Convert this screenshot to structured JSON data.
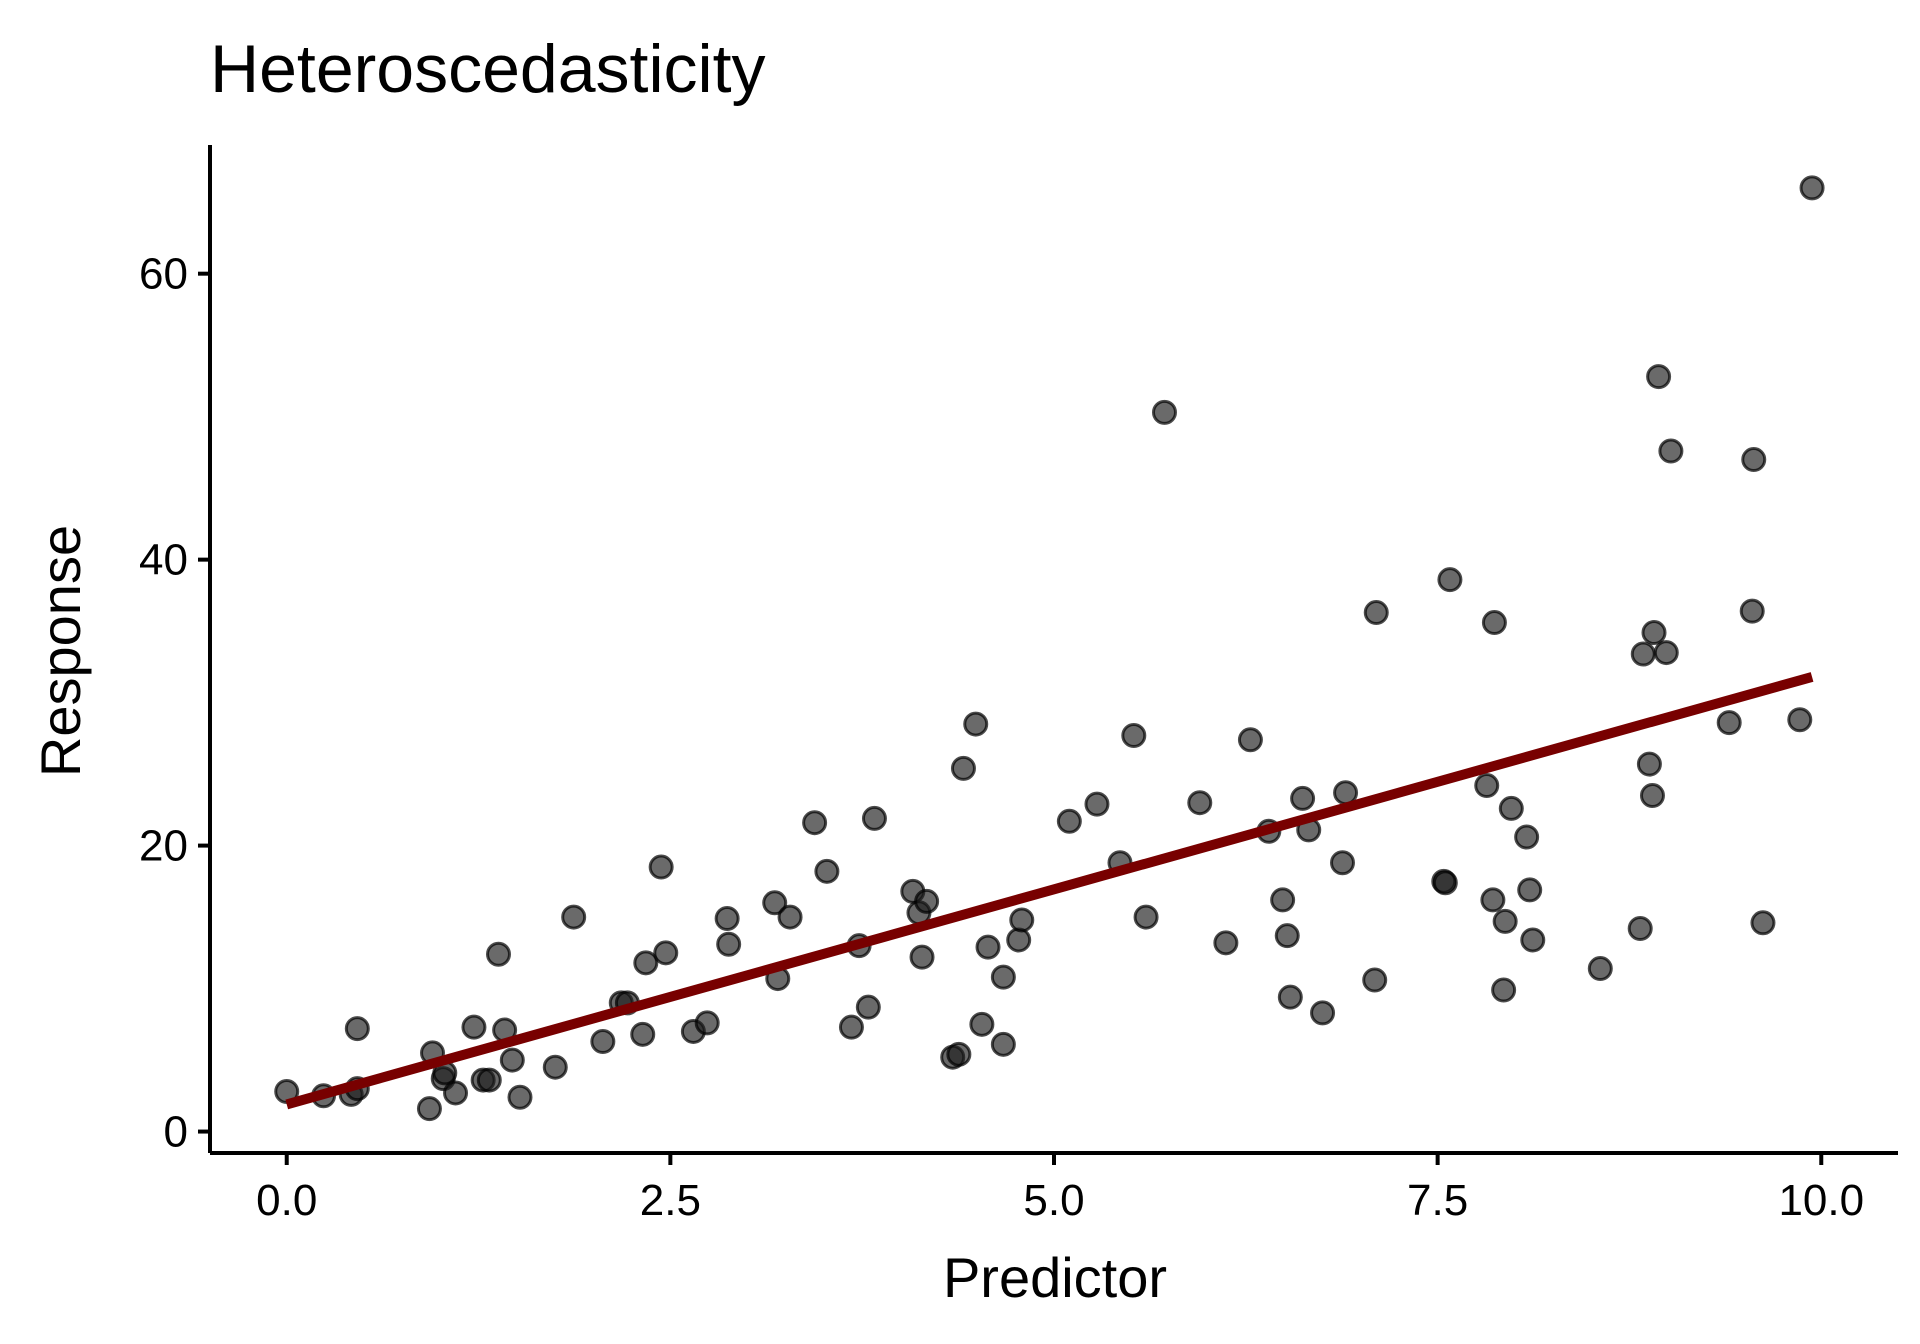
{
  "chart_data": {
    "type": "scatter",
    "title": "Heteroscedasticity",
    "xlabel": "Predictor",
    "ylabel": "Response",
    "xlim": [
      -0.5,
      10.5
    ],
    "ylim": [
      -1.5,
      69
    ],
    "x_ticks": [
      {
        "value": 0,
        "label": "0.0"
      },
      {
        "value": 2.5,
        "label": "2.5"
      },
      {
        "value": 5,
        "label": "5.0"
      },
      {
        "value": 7.5,
        "label": "7.5"
      },
      {
        "value": 10,
        "label": "10.0"
      }
    ],
    "y_ticks": [
      {
        "value": 0,
        "label": "0"
      },
      {
        "value": 20,
        "label": "20"
      },
      {
        "value": 40,
        "label": "40"
      },
      {
        "value": 60,
        "label": "60"
      }
    ],
    "grid": false,
    "series": [
      {
        "name": "observations",
        "type": "scatter",
        "points": [
          [
            0.0,
            2.8
          ],
          [
            0.24,
            2.5
          ],
          [
            0.42,
            2.6
          ],
          [
            0.46,
            3.0
          ],
          [
            0.46,
            7.2
          ],
          [
            0.93,
            1.6
          ],
          [
            0.95,
            5.5
          ],
          [
            1.02,
            3.7
          ],
          [
            1.03,
            4.1
          ],
          [
            1.1,
            2.7
          ],
          [
            1.22,
            7.3
          ],
          [
            1.28,
            3.6
          ],
          [
            1.32,
            3.6
          ],
          [
            1.38,
            12.4
          ],
          [
            1.42,
            7.1
          ],
          [
            1.47,
            5.0
          ],
          [
            1.52,
            2.4
          ],
          [
            1.75,
            4.5
          ],
          [
            1.87,
            15.0
          ],
          [
            2.06,
            6.3
          ],
          [
            2.18,
            9.0
          ],
          [
            2.22,
            9.0
          ],
          [
            2.32,
            6.8
          ],
          [
            2.34,
            11.8
          ],
          [
            2.44,
            18.5
          ],
          [
            2.47,
            12.5
          ],
          [
            2.65,
            7.0
          ],
          [
            2.74,
            7.6
          ],
          [
            2.87,
            14.9
          ],
          [
            2.88,
            13.1
          ],
          [
            3.18,
            16.0
          ],
          [
            3.2,
            10.7
          ],
          [
            3.28,
            15.0
          ],
          [
            3.44,
            21.6
          ],
          [
            3.52,
            18.2
          ],
          [
            3.68,
            7.3
          ],
          [
            3.73,
            13.0
          ],
          [
            3.79,
            8.7
          ],
          [
            3.83,
            21.9
          ],
          [
            4.08,
            16.8
          ],
          [
            4.12,
            15.3
          ],
          [
            4.14,
            12.2
          ],
          [
            4.17,
            16.1
          ],
          [
            4.34,
            5.2
          ],
          [
            4.38,
            5.4
          ],
          [
            4.41,
            25.4
          ],
          [
            4.49,
            28.5
          ],
          [
            4.53,
            7.5
          ],
          [
            4.57,
            12.9
          ],
          [
            4.67,
            10.8
          ],
          [
            4.67,
            6.1
          ],
          [
            4.77,
            13.4
          ],
          [
            4.79,
            14.8
          ],
          [
            5.1,
            21.7
          ],
          [
            5.28,
            22.9
          ],
          [
            5.43,
            18.8
          ],
          [
            5.52,
            27.7
          ],
          [
            5.6,
            15.0
          ],
          [
            5.72,
            50.3
          ],
          [
            5.95,
            23.0
          ],
          [
            6.12,
            13.2
          ],
          [
            6.28,
            27.4
          ],
          [
            6.4,
            21.0
          ],
          [
            6.49,
            16.2
          ],
          [
            6.52,
            13.7
          ],
          [
            6.54,
            9.4
          ],
          [
            6.62,
            23.3
          ],
          [
            6.66,
            21.1
          ],
          [
            6.75,
            8.3
          ],
          [
            6.88,
            18.8
          ],
          [
            6.9,
            23.7
          ],
          [
            7.09,
            10.6
          ],
          [
            7.1,
            36.3
          ],
          [
            7.54,
            17.5
          ],
          [
            7.55,
            17.4
          ],
          [
            7.58,
            38.6
          ],
          [
            7.82,
            24.2
          ],
          [
            7.86,
            16.2
          ],
          [
            7.87,
            35.6
          ],
          [
            7.93,
            9.9
          ],
          [
            7.94,
            14.7
          ],
          [
            7.98,
            22.6
          ],
          [
            8.08,
            20.6
          ],
          [
            8.1,
            16.9
          ],
          [
            8.12,
            13.4
          ],
          [
            8.56,
            11.4
          ],
          [
            8.82,
            14.2
          ],
          [
            8.84,
            33.4
          ],
          [
            8.88,
            25.7
          ],
          [
            8.9,
            23.5
          ],
          [
            8.91,
            34.9
          ],
          [
            8.94,
            52.8
          ],
          [
            8.99,
            33.5
          ],
          [
            9.02,
            47.6
          ],
          [
            9.4,
            28.6
          ],
          [
            9.55,
            36.4
          ],
          [
            9.56,
            47.0
          ],
          [
            9.62,
            14.6
          ],
          [
            9.86,
            28.8
          ],
          [
            9.94,
            66.0
          ]
        ]
      },
      {
        "name": "linear fit",
        "type": "line",
        "color": "#780000",
        "x": [
          0.0,
          9.94
        ],
        "y": [
          1.9,
          31.8
        ]
      }
    ]
  }
}
